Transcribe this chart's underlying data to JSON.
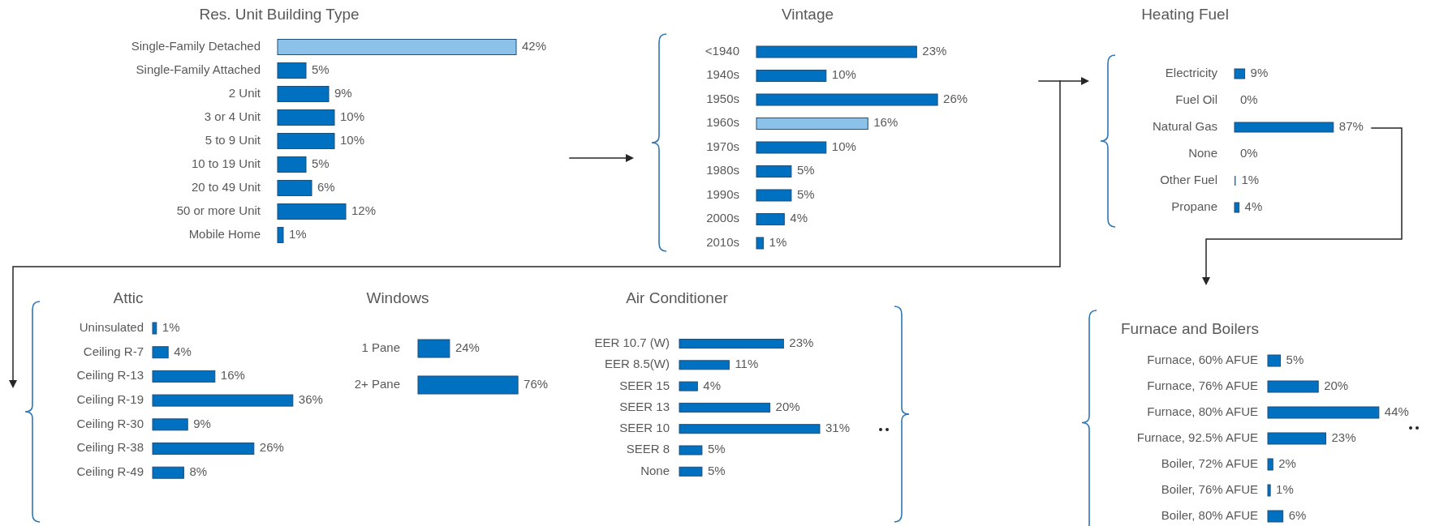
{
  "chart_data": [
    {
      "type": "bar",
      "orientation": "horizontal",
      "title": "Res. Unit Building Type",
      "categories": [
        "Single-Family Detached",
        "Single-Family Attached",
        "2 Unit",
        "3 or 4 Unit",
        "5 to 9 Unit",
        "10 to 19 Unit",
        "20 to 49 Unit",
        "50 or more Unit",
        "Mobile Home"
      ],
      "values": [
        42,
        5,
        9,
        10,
        10,
        5,
        6,
        12,
        1
      ],
      "value_labels": [
        "42%",
        "5%",
        "9%",
        "10%",
        "10%",
        "5%",
        "6%",
        "12%",
        "1%"
      ],
      "colors": [
        "#8cc2ea",
        "#0070c0",
        "#0070c0",
        "#0070c0",
        "#0070c0",
        "#0070c0",
        "#0070c0",
        "#0070c0",
        "#0070c0"
      ]
    },
    {
      "type": "bar",
      "orientation": "horizontal",
      "title": "Vintage",
      "categories": [
        "<1940",
        "1940s",
        "1950s",
        "1960s",
        "1970s",
        "1980s",
        "1990s",
        "2000s",
        "2010s"
      ],
      "values": [
        23,
        10,
        26,
        16,
        10,
        5,
        5,
        4,
        1
      ],
      "value_labels": [
        "23%",
        "10%",
        "26%",
        "16%",
        "10%",
        "5%",
        "5%",
        "4%",
        "1%"
      ],
      "colors": [
        "#0070c0",
        "#0070c0",
        "#0070c0",
        "#8cc2ea",
        "#0070c0",
        "#0070c0",
        "#0070c0",
        "#0070c0",
        "#0070c0"
      ]
    },
    {
      "type": "bar",
      "orientation": "horizontal",
      "title": "Heating Fuel",
      "categories": [
        "Electricity",
        "Fuel Oil",
        "Natural Gas",
        "None",
        "Other Fuel",
        "Propane"
      ],
      "values": [
        9,
        0,
        87,
        0,
        1,
        4
      ],
      "value_labels": [
        "9%",
        "0%",
        "87%",
        "0%",
        "1%",
        "4%"
      ],
      "color": "#0070c0"
    },
    {
      "type": "bar",
      "orientation": "horizontal",
      "title": "Attic",
      "categories": [
        "Uninsulated",
        "Ceiling R-7",
        "Ceiling R-13",
        "Ceiling R-19",
        "Ceiling R-30",
        "Ceiling R-38",
        "Ceiling R-49"
      ],
      "values": [
        1,
        4,
        16,
        36,
        9,
        26,
        8
      ],
      "value_labels": [
        "1%",
        "4%",
        "16%",
        "36%",
        "9%",
        "26%",
        "8%"
      ],
      "color": "#0070c0"
    },
    {
      "type": "bar",
      "orientation": "horizontal",
      "title": "Windows",
      "categories": [
        "1 Pane",
        "2+ Pane"
      ],
      "values": [
        24,
        76
      ],
      "value_labels": [
        "24%",
        "76%"
      ],
      "color": "#0070c0"
    },
    {
      "type": "bar",
      "orientation": "horizontal",
      "title": "Air Conditioner",
      "categories": [
        "EER 10.7 (W)",
        "EER 8.5(W)",
        "SEER 15",
        "SEER 13",
        "SEER 10",
        "SEER 8",
        "None"
      ],
      "values": [
        23,
        11,
        4,
        20,
        31,
        5,
        5
      ],
      "value_labels": [
        "23%",
        "11%",
        "4%",
        "20%",
        "31%",
        "5%",
        "5%"
      ],
      "color": "#0070c0"
    },
    {
      "type": "bar",
      "orientation": "horizontal",
      "title": "Furnace and Boilers",
      "categories": [
        "Furnace, 60% AFUE",
        "Furnace, 76% AFUE",
        "Furnace, 80% AFUE",
        "Furnace, 92.5% AFUE",
        "Boiler, 72% AFUE",
        "Boiler, 76% AFUE",
        "Boiler, 80% AFUE"
      ],
      "values": [
        5,
        20,
        44,
        23,
        2,
        1,
        6
      ],
      "value_labels": [
        "5%",
        "20%",
        "44%",
        "23%",
        "2%",
        "1%",
        "6%"
      ],
      "color": "#0070c0"
    }
  ]
}
